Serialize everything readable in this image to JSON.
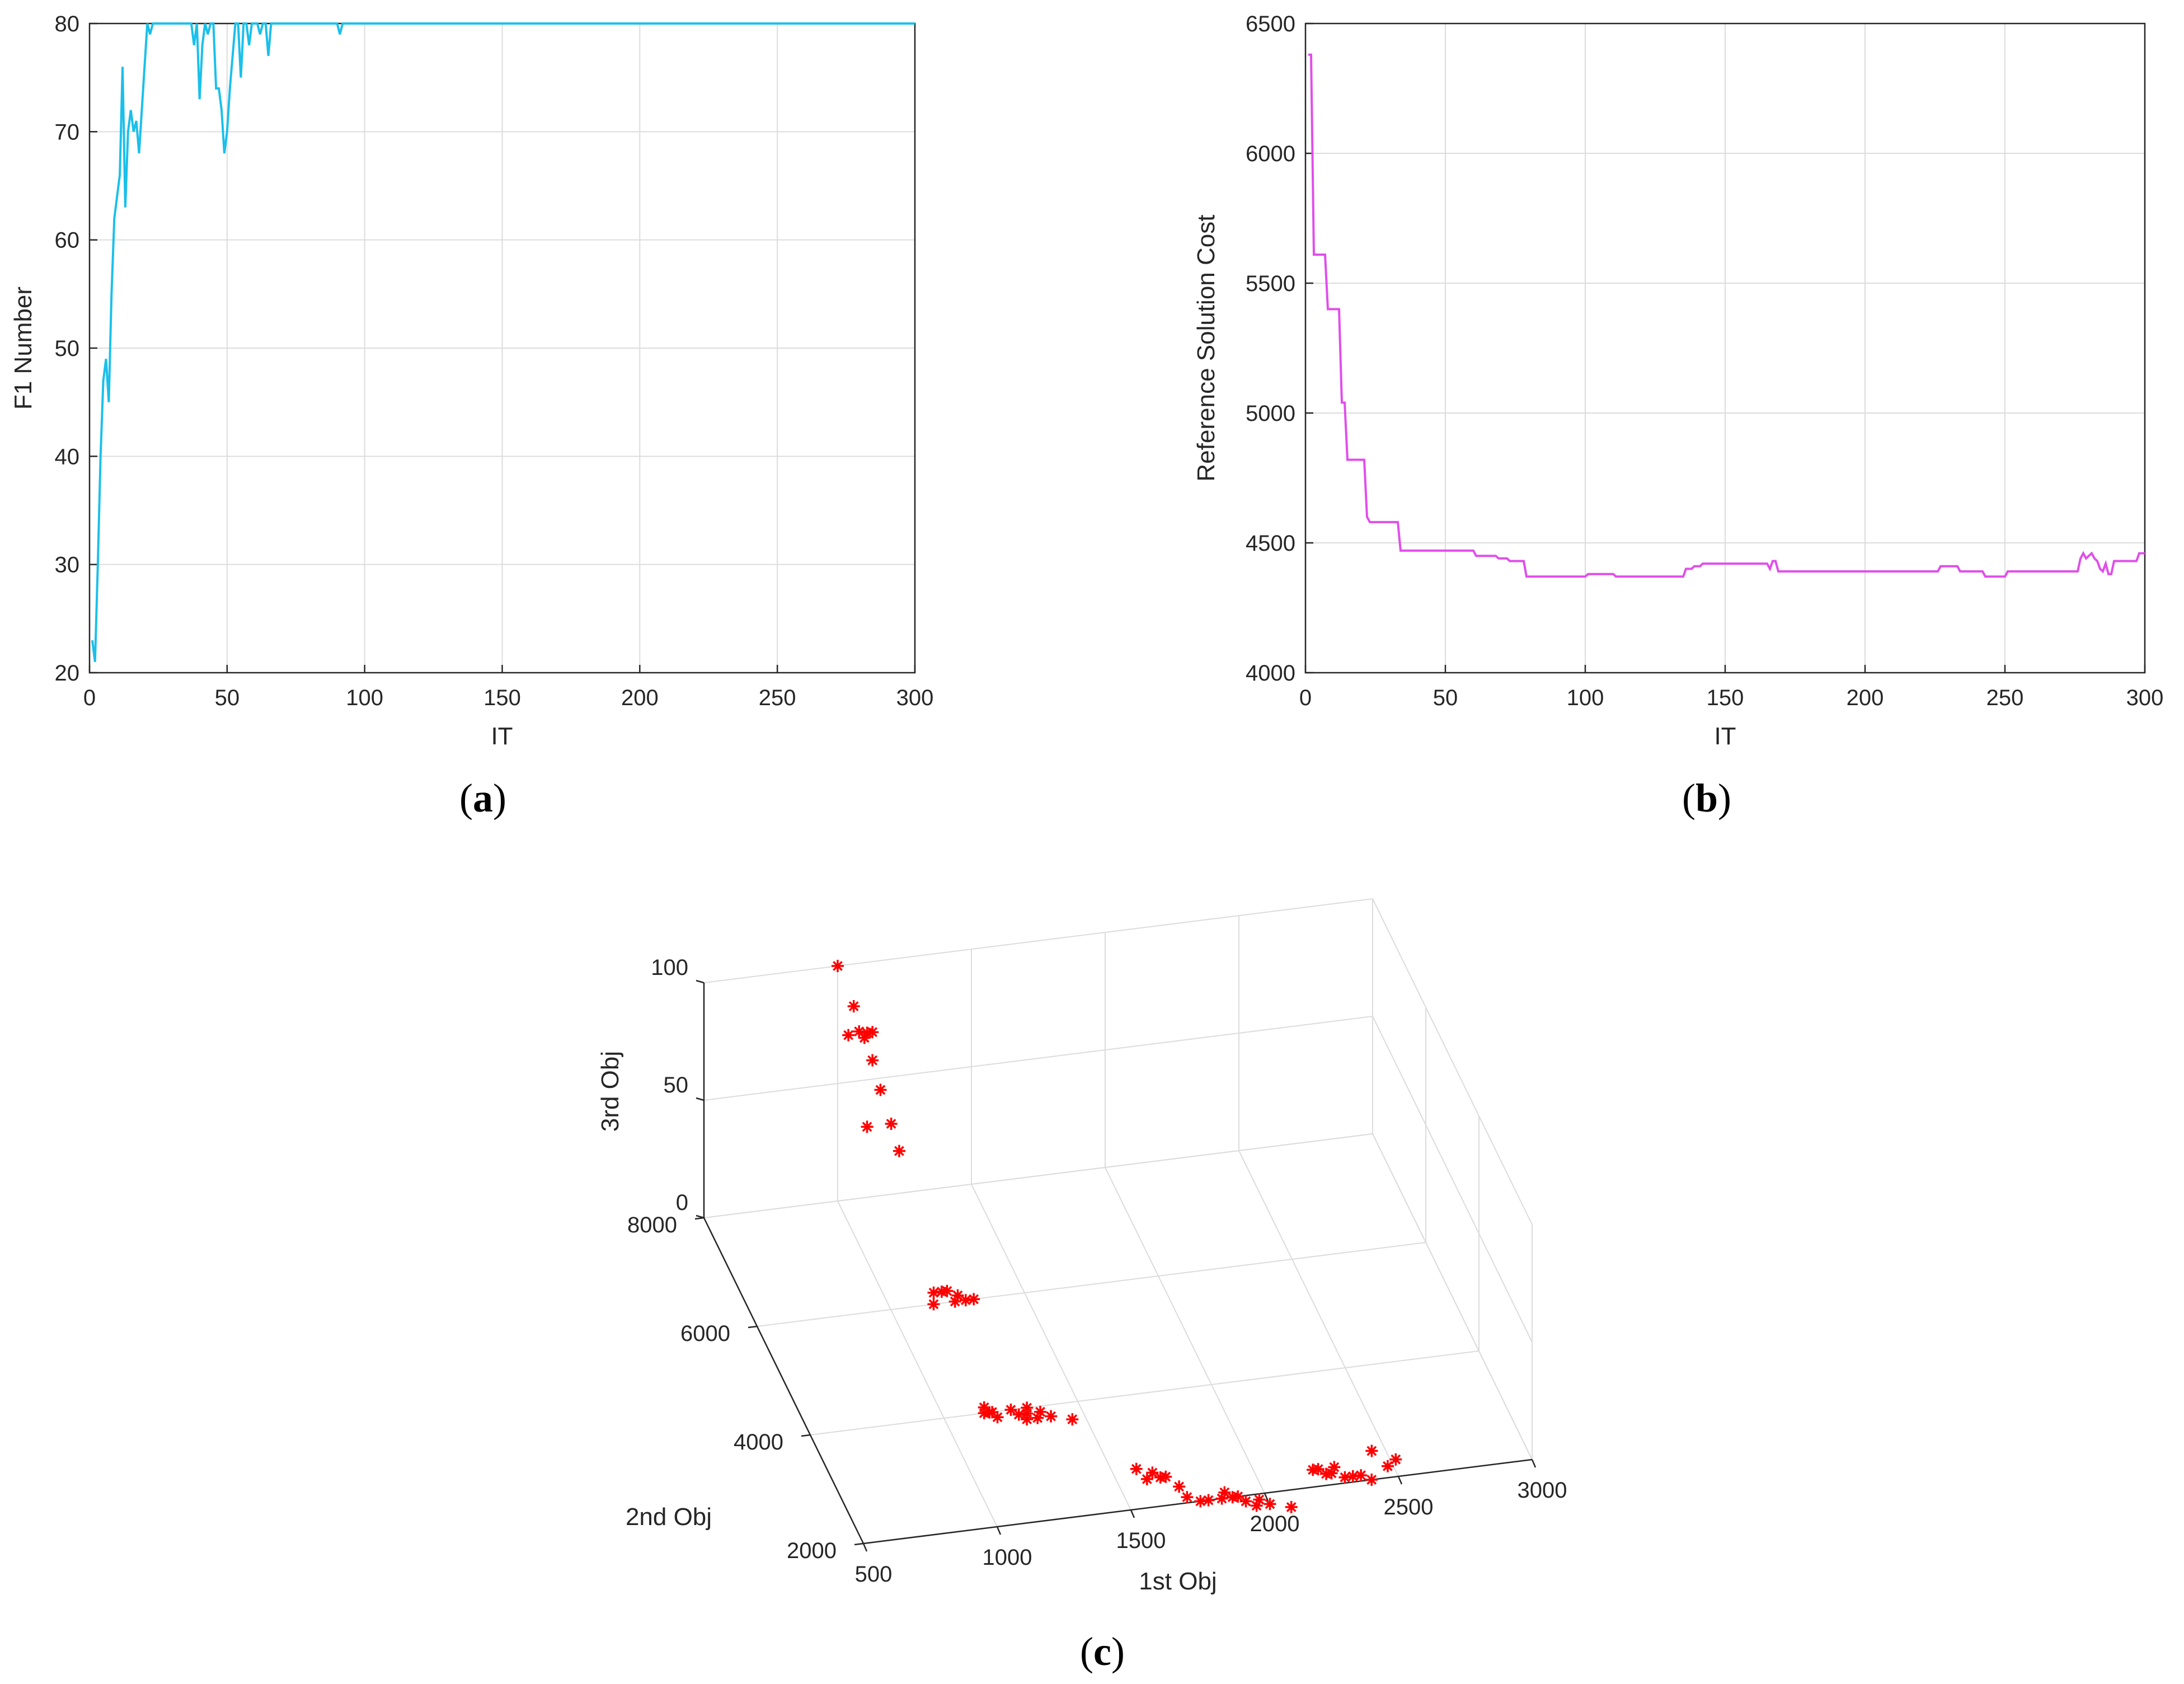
{
  "chart_data": [
    {
      "id": "a",
      "type": "line",
      "panel_label": "a",
      "xlabel": "IT",
      "ylabel": "F1 Number",
      "xlim": [
        0,
        300
      ],
      "ylim": [
        20,
        80
      ],
      "xticks": [
        0,
        50,
        100,
        150,
        200,
        250,
        300
      ],
      "yticks": [
        20,
        30,
        40,
        50,
        60,
        70,
        80
      ],
      "grid": true,
      "color": "#1AC0EA",
      "series": [
        {
          "name": "F1 Number",
          "x": [
            1,
            2,
            3,
            4,
            5,
            6,
            7,
            8,
            9,
            10,
            11,
            12,
            13,
            14,
            15,
            16,
            17,
            18,
            19,
            20,
            21,
            22,
            23,
            24,
            25,
            26,
            37,
            38,
            39,
            40,
            41,
            42,
            43,
            44,
            45,
            46,
            47,
            48,
            49,
            50,
            51,
            52,
            53,
            54,
            55,
            56,
            57,
            58,
            59,
            60,
            61,
            62,
            63,
            64,
            65,
            66,
            67,
            68,
            69,
            70,
            71,
            72,
            90,
            91,
            92,
            300
          ],
          "y": [
            23,
            21,
            30,
            40,
            47,
            49,
            45,
            55,
            62,
            64,
            66,
            76,
            63,
            70,
            72,
            70,
            71,
            68,
            72,
            76,
            80,
            79,
            80,
            80,
            80,
            80,
            80,
            78,
            80,
            73,
            78,
            80,
            79,
            80,
            80,
            74,
            74,
            72,
            68,
            70,
            74,
            77,
            80,
            80,
            75,
            80,
            80,
            78,
            80,
            80,
            80,
            79,
            80,
            80,
            77,
            80,
            80,
            80,
            80,
            80,
            80,
            80,
            80,
            79,
            80,
            80
          ]
        }
      ]
    },
    {
      "id": "b",
      "type": "line",
      "panel_label": "b",
      "xlabel": "IT",
      "ylabel": "Reference Solution Cost",
      "xlim": [
        0,
        300
      ],
      "ylim": [
        4000,
        6500
      ],
      "xticks": [
        0,
        50,
        100,
        150,
        200,
        250,
        300
      ],
      "yticks": [
        4000,
        4500,
        5000,
        5500,
        6000,
        6500
      ],
      "grid": true,
      "color": "#E14DEB",
      "series": [
        {
          "name": "Reference Solution Cost",
          "x": [
            1,
            2,
            3,
            4,
            5,
            6,
            7,
            8,
            9,
            10,
            11,
            12,
            13,
            14,
            15,
            16,
            17,
            18,
            19,
            20,
            21,
            22,
            23,
            24,
            25,
            26,
            27,
            28,
            29,
            30,
            31,
            32,
            33,
            34,
            60,
            61,
            68,
            69,
            72,
            73,
            78,
            79,
            100,
            101,
            110,
            111,
            135,
            136,
            138,
            139,
            141,
            142,
            165,
            166,
            167,
            168,
            169,
            170,
            226,
            227,
            233,
            234,
            242,
            243,
            250,
            251,
            276,
            277,
            278,
            279,
            280,
            281,
            282,
            283,
            284,
            285,
            286,
            287,
            288,
            289,
            297,
            298,
            299,
            300
          ],
          "y": [
            6380,
            6380,
            5610,
            5610,
            5610,
            5610,
            5610,
            5400,
            5400,
            5400,
            5400,
            5400,
            5040,
            5040,
            4820,
            4820,
            4820,
            4820,
            4820,
            4820,
            4820,
            4600,
            4580,
            4580,
            4580,
            4580,
            4580,
            4580,
            4580,
            4580,
            4580,
            4580,
            4580,
            4470,
            4470,
            4450,
            4450,
            4440,
            4440,
            4430,
            4430,
            4370,
            4370,
            4380,
            4380,
            4370,
            4370,
            4400,
            4400,
            4410,
            4410,
            4420,
            4420,
            4400,
            4430,
            4430,
            4390,
            4390,
            4390,
            4410,
            4410,
            4390,
            4390,
            4370,
            4370,
            4390,
            4390,
            4440,
            4460,
            4440,
            4450,
            4460,
            4440,
            4430,
            4400,
            4390,
            4420,
            4380,
            4380,
            4430,
            4430,
            4460,
            4460,
            4460
          ]
        }
      ]
    },
    {
      "id": "c",
      "type": "scatter",
      "panel_label": "c",
      "xlabel": "1st Obj",
      "ylabel": "2nd Obj",
      "zlabel": "3rd Obj",
      "xlim": [
        500,
        3000
      ],
      "ylim": [
        2000,
        8000
      ],
      "zlim": [
        0,
        100
      ],
      "xticks": [
        500,
        1000,
        1500,
        2000,
        2500,
        3000
      ],
      "yticks": [
        2000,
        4000,
        6000,
        8000
      ],
      "zticks": [
        0,
        50,
        100
      ],
      "grid": true,
      "marker": "*",
      "color": "#FF0000",
      "points": [
        [
          1000,
          8000,
          100
        ],
        [
          1060,
          8000,
          82
        ],
        [
          1040,
          8000,
          70
        ],
        [
          1080,
          8000,
          71
        ],
        [
          1110,
          8000,
          70
        ],
        [
          1130,
          8000,
          70
        ],
        [
          1100,
          8000,
          68
        ],
        [
          1130,
          8000,
          58
        ],
        [
          1160,
          8000,
          45
        ],
        [
          1110,
          8000,
          30
        ],
        [
          1200,
          8000,
          30
        ],
        [
          1230,
          8000,
          18
        ],
        [
          1160,
          6000,
          0
        ],
        [
          1180,
          6200,
          0
        ],
        [
          1210,
          6200,
          0
        ],
        [
          1230,
          6200,
          0
        ],
        [
          1240,
          6000,
          0
        ],
        [
          1260,
          6100,
          0
        ],
        [
          1280,
          6000,
          0
        ],
        [
          1310,
          6000,
          0
        ],
        [
          1150,
          4000,
          0
        ],
        [
          1160,
          4100,
          0
        ],
        [
          1170,
          4000,
          0
        ],
        [
          1180,
          4000,
          0
        ],
        [
          1190,
          3900,
          0
        ],
        [
          1250,
          4000,
          0
        ],
        [
          1270,
          3900,
          0
        ],
        [
          1290,
          3800,
          0
        ],
        [
          1300,
          3900,
          0
        ],
        [
          1310,
          4000,
          0
        ],
        [
          1330,
          3800,
          0
        ],
        [
          1350,
          3900,
          0
        ],
        [
          1380,
          3800,
          0
        ],
        [
          1450,
          3700,
          0
        ],
        [
          1590,
          2700,
          0
        ],
        [
          1610,
          2500,
          0
        ],
        [
          1640,
          2600,
          0
        ],
        [
          1660,
          2500,
          0
        ],
        [
          1680,
          2500,
          0
        ],
        [
          1710,
          2300,
          0
        ],
        [
          1720,
          2100,
          0
        ],
        [
          1760,
          2000,
          0
        ],
        [
          1790,
          2000,
          0
        ],
        [
          1840,
          2000,
          0
        ],
        [
          1860,
          2100,
          0
        ],
        [
          1880,
          2000,
          0
        ],
        [
          1900,
          2000,
          0
        ],
        [
          1920,
          1900,
          0
        ],
        [
          1950,
          1800,
          0
        ],
        [
          1970,
          1900,
          0
        ],
        [
          2000,
          1800,
          0
        ],
        [
          2070,
          1700,
          0
        ],
        [
          2210,
          2300,
          0
        ],
        [
          2230,
          2300,
          0
        ],
        [
          2250,
          2200,
          0
        ],
        [
          2270,
          2200,
          0
        ],
        [
          2290,
          2300,
          0
        ],
        [
          2310,
          2100,
          0
        ],
        [
          2340,
          2100,
          0
        ],
        [
          2370,
          2100,
          0
        ],
        [
          2400,
          2000,
          0
        ],
        [
          2450,
          2500,
          0
        ],
        [
          2480,
          2200,
          0
        ],
        [
          2520,
          2300,
          0
        ]
      ]
    }
  ]
}
